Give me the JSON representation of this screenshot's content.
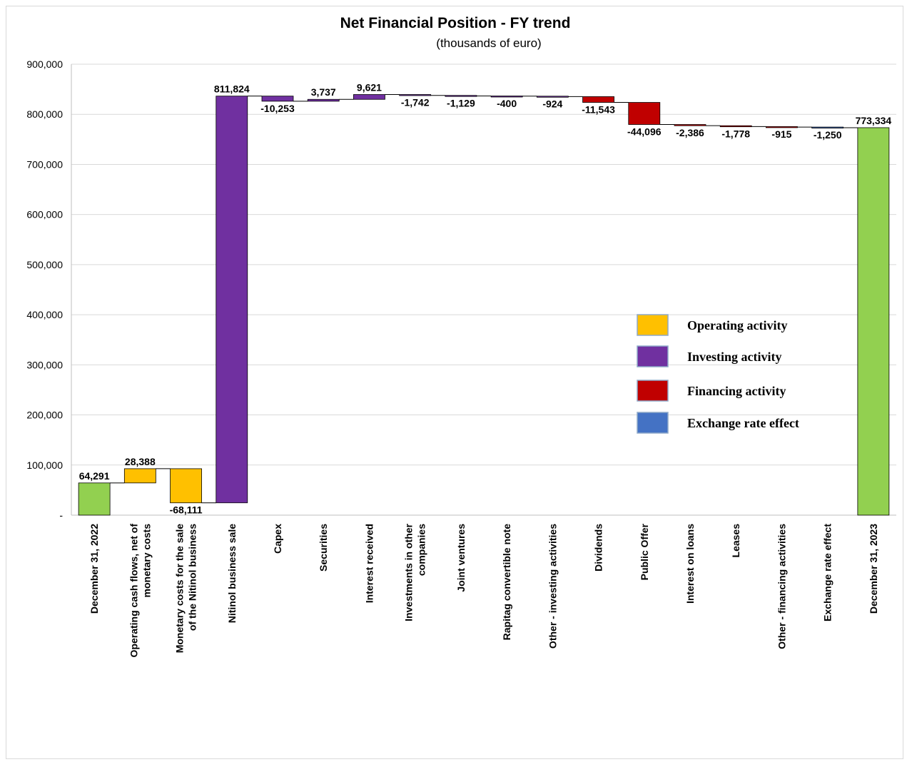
{
  "chart_data": {
    "type": "bar",
    "subtype": "waterfall",
    "title": "Net Financial Position - FY trend",
    "subtitle": "(thousands of euro)",
    "xlabel": "",
    "ylabel": "",
    "ylim": [
      0,
      900000
    ],
    "y_ticks": [
      "-",
      "100,000",
      "200,000",
      "300,000",
      "400,000",
      "500,000",
      "600,000",
      "700,000",
      "800,000",
      "900,000"
    ],
    "grid": true,
    "legend_position": "right",
    "categories": [
      "December 31, 2022",
      "Operating cash flows, net of monetary costs",
      "Monetary costs for the sale of the Nitinol business",
      "Nitinol business sale",
      "Capex",
      "Securities",
      "Interest received",
      "Investments in other companies",
      "Joint ventures",
      "Rapitag convertible note",
      "Other - investing activities",
      "Dividends",
      "Public Offer",
      "Interest on loans",
      "Leases",
      "Other - financing activities",
      "Exchange rate effect",
      "December 31, 2023"
    ],
    "values": [
      64291,
      28388,
      -68111,
      811824,
      -10253,
      3737,
      9621,
      -1742,
      -1129,
      -400,
      -924,
      -11543,
      -44096,
      -2386,
      -1778,
      -915,
      -1250,
      773334
    ],
    "value_labels": [
      "64,291",
      "28,388",
      "-68,111",
      "811,824",
      "-10,253",
      "3,737",
      "9,621",
      "-1,742",
      "-1,129",
      "-400",
      "-924",
      "-11,543",
      "-44,096",
      "-2,386",
      "-1,778",
      "-915",
      "-1,250",
      "773,334"
    ],
    "kinds": [
      "total",
      "operating",
      "operating",
      "investing",
      "investing",
      "investing",
      "investing",
      "investing",
      "investing",
      "investing",
      "investing",
      "financing",
      "financing",
      "financing",
      "financing",
      "financing",
      "exchange",
      "total"
    ],
    "colors": {
      "total": "#92d050",
      "operating": "#ffc000",
      "investing": "#7030a0",
      "financing": "#c00000",
      "exchange": "#4472c4"
    },
    "legend": [
      {
        "label": "Operating activity",
        "kind": "operating"
      },
      {
        "label": "Investing activity",
        "kind": "investing"
      },
      {
        "label": "Financing activity",
        "kind": "financing"
      },
      {
        "label": "Exchange rate effect",
        "kind": "exchange"
      }
    ]
  }
}
